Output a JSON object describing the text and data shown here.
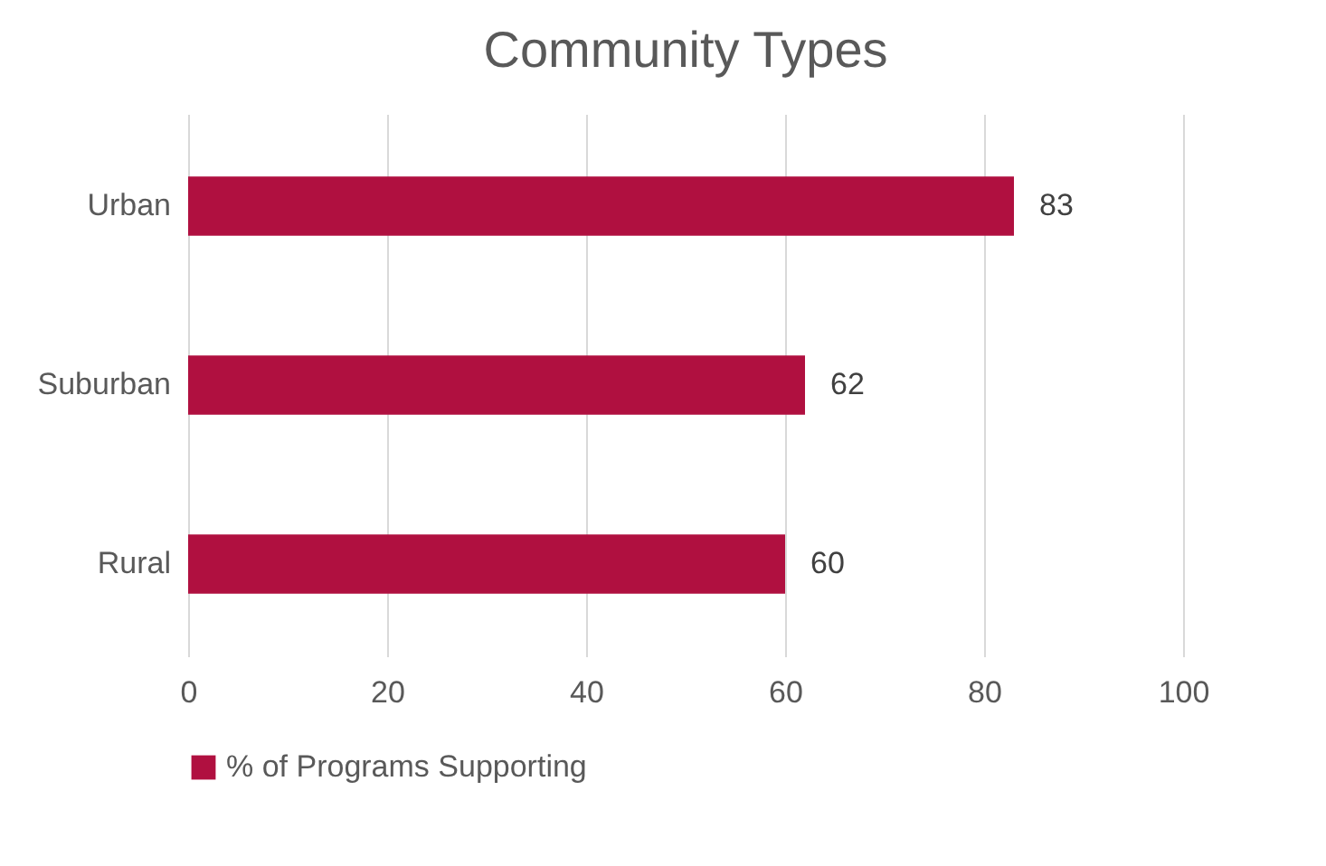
{
  "chart_data": {
    "type": "bar",
    "orientation": "horizontal",
    "title": "Community Types",
    "categories": [
      "Urban",
      "Suburban",
      "Rural"
    ],
    "series": [
      {
        "name": "% of Programs Supporting",
        "color": "#b01040",
        "values": [
          83,
          62,
          60
        ]
      }
    ],
    "xlim": [
      0,
      100
    ],
    "xticks": [
      0,
      20,
      40,
      60,
      80,
      100
    ],
    "grid": "x",
    "legend": "bottom",
    "data_labels": true
  }
}
